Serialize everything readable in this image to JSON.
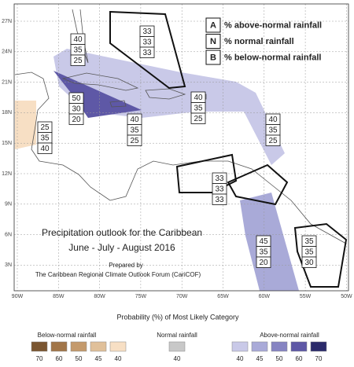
{
  "map": {
    "lat_labels": [
      "27N",
      "24N",
      "21N",
      "18N",
      "15N",
      "12N",
      "9N",
      "6N",
      "3N"
    ],
    "lon_labels": [
      "90W",
      "85W",
      "80W",
      "75W",
      "70W",
      "65W",
      "60W",
      "55W",
      "50W"
    ]
  },
  "key": [
    {
      "letter": "A",
      "text": "% above-normal rainfall"
    },
    {
      "letter": "N",
      "text": "% normal rainfall"
    },
    {
      "letter": "B",
      "text": "% below-normal rainfall"
    }
  ],
  "boxes": [
    [
      33,
      33,
      33
    ],
    [
      40,
      35,
      25
    ],
    [
      50,
      30,
      20
    ],
    [
      25,
      35,
      40
    ],
    [
      40,
      35,
      25
    ],
    [
      40,
      35,
      25
    ],
    [
      40,
      35,
      25
    ],
    [
      33,
      33,
      33
    ],
    [
      45,
      35,
      20
    ],
    [
      35,
      35,
      30
    ]
  ],
  "title": "Precipitation outlook for the Caribbean",
  "subtitle": "June - July - August 2016",
  "credit": [
    "Prepared by",
    "The Caribbean Regional Climate Outlook Forum (CariCOF)"
  ],
  "legend": {
    "title": "Probability (%) of Most Likely Category",
    "groups": [
      {
        "name": "Below-normal rainfall",
        "levels": [
          70,
          60,
          50,
          45,
          40
        ],
        "colors": [
          "#7a5530",
          "#a17548",
          "#c49a6c",
          "#e0c09a",
          "#f7dfc4"
        ]
      },
      {
        "name": "Normal rainfall",
        "levels": [
          40
        ],
        "colors": [
          "#c8c8c8"
        ]
      },
      {
        "name": "Above-normal rainfall",
        "levels": [
          40,
          45,
          50,
          60,
          70
        ],
        "colors": [
          "#c9c9e8",
          "#a9aad8",
          "#8684c2",
          "#5e58a6",
          "#2b2a6a"
        ]
      }
    ]
  }
}
